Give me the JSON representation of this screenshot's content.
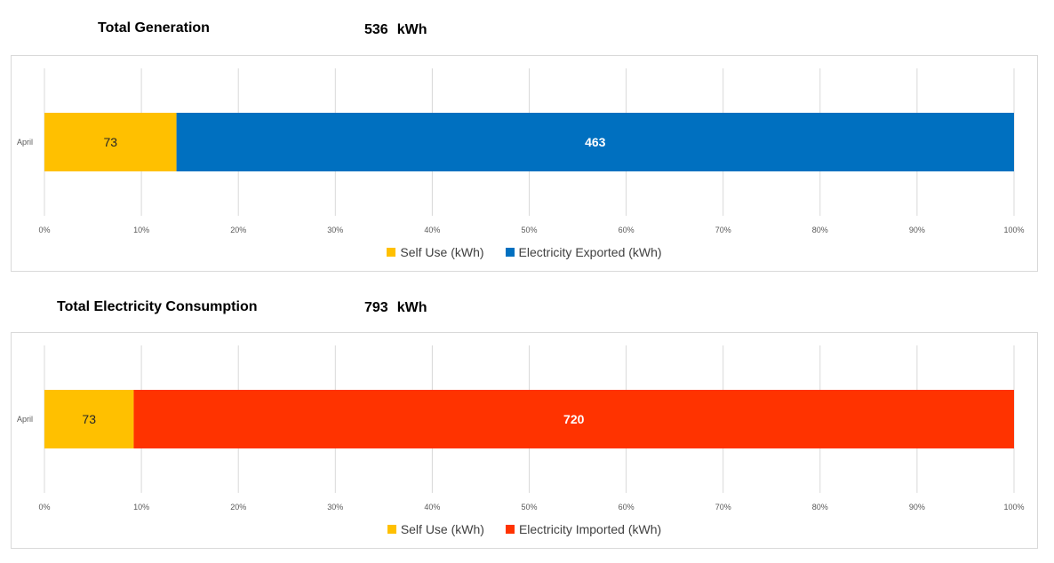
{
  "generation": {
    "title": "Total Generation",
    "total_value": "536",
    "total_unit": "kWh"
  },
  "consumption": {
    "title": "Total Electricity Consumption",
    "total_value": "793",
    "total_unit": "kWh"
  },
  "chart_data": [
    {
      "type": "bar",
      "orientation": "horizontal",
      "stacking": "percent",
      "categories": [
        "April"
      ],
      "series": [
        {
          "name": "Self Use (kWh)",
          "values": [
            73
          ],
          "color": "#FFC000"
        },
        {
          "name": "Electricity Exported (kWh)",
          "values": [
            463
          ],
          "color": "#0070C0"
        }
      ],
      "data_labels": [
        "73",
        "463"
      ],
      "xlim": [
        0,
        100
      ],
      "x_ticks": [
        "0%",
        "10%",
        "20%",
        "30%",
        "40%",
        "50%",
        "60%",
        "70%",
        "80%",
        "90%",
        "100%"
      ],
      "grid": true,
      "legend": "bottom"
    },
    {
      "type": "bar",
      "orientation": "horizontal",
      "stacking": "percent",
      "categories": [
        "April"
      ],
      "series": [
        {
          "name": "Self Use (kWh)",
          "values": [
            73
          ],
          "color": "#FFC000"
        },
        {
          "name": "Electricity Imported (kWh)",
          "values": [
            720
          ],
          "color": "#FF3300"
        }
      ],
      "data_labels": [
        "73",
        "720"
      ],
      "xlim": [
        0,
        100
      ],
      "x_ticks": [
        "0%",
        "10%",
        "20%",
        "30%",
        "40%",
        "50%",
        "60%",
        "70%",
        "80%",
        "90%",
        "100%"
      ],
      "grid": true,
      "legend": "bottom"
    }
  ]
}
